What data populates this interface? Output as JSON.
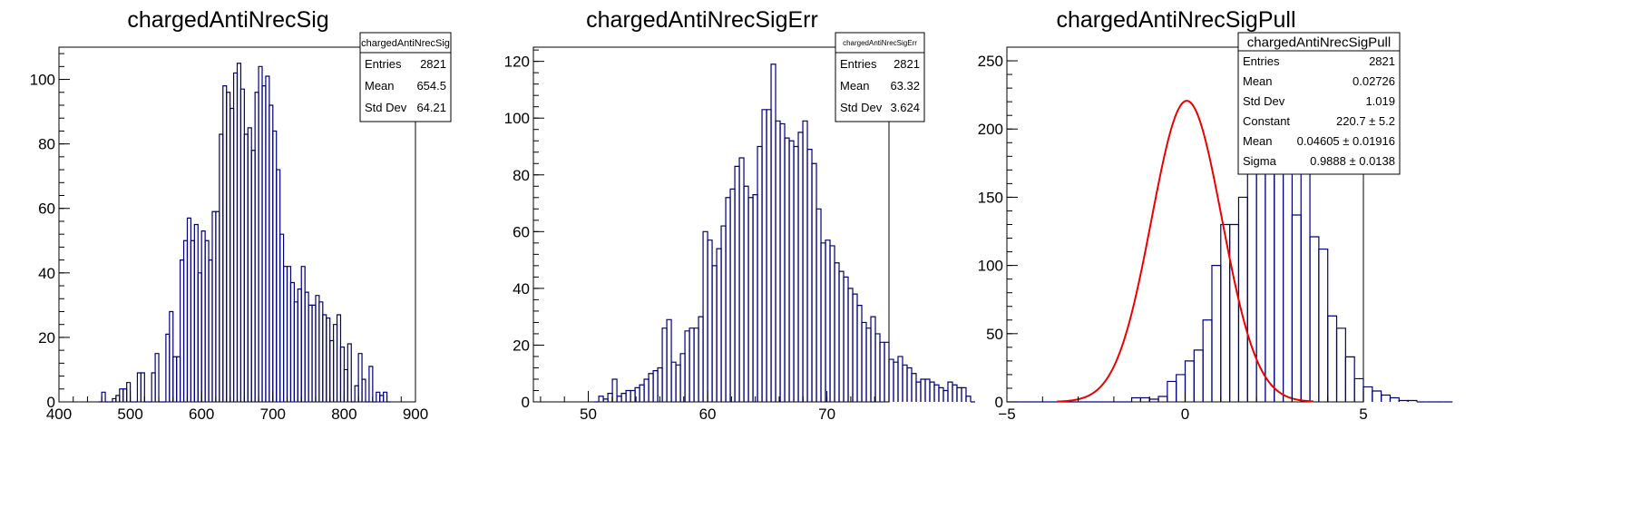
{
  "chart_data": [
    {
      "type": "histogram",
      "title": "chargedAntiNrecSig",
      "xlabel": "",
      "ylabel": "",
      "xlim": [
        400,
        900
      ],
      "ylim": [
        0,
        110
      ],
      "xticks": [
        400,
        500,
        600,
        700,
        800,
        900
      ],
      "yticks": [
        0,
        20,
        40,
        60,
        80,
        100
      ],
      "bins": {
        "start": 455,
        "width": 5
      },
      "values": [
        0,
        3,
        0,
        0,
        1,
        2,
        4,
        4,
        6,
        0,
        0,
        9,
        9,
        0,
        0,
        9,
        15,
        0,
        0,
        21,
        28,
        14,
        14,
        44,
        50,
        57,
        50,
        55,
        40,
        53,
        50,
        44,
        59,
        59,
        83,
        98,
        96,
        91,
        102,
        105,
        97,
        83,
        85,
        78,
        96,
        104,
        98,
        101,
        92,
        84,
        72,
        52,
        42,
        42,
        37,
        31,
        35,
        42,
        34,
        30,
        30,
        33,
        31,
        27,
        26,
        19,
        24,
        27,
        17,
        10,
        18,
        0,
        5,
        15,
        7,
        0,
        11,
        0,
        3,
        2,
        3,
        0
      ],
      "legend_position": "top-right",
      "stats": {
        "header": "chargedAntiNrecSig",
        "rows": [
          {
            "label": "Entries",
            "value": "2821"
          },
          {
            "label": "Mean",
            "value": "654.5"
          },
          {
            "label": "Std Dev",
            "value": "64.21"
          }
        ]
      },
      "line_color": "#00007a"
    },
    {
      "type": "histogram",
      "title": "chargedAntiNrecSigErr",
      "xlabel": "",
      "ylabel": "",
      "xlim": [
        45.4,
        75.2
      ],
      "ylim": [
        0,
        125
      ],
      "xticks": [
        50,
        60,
        70
      ],
      "yticks": [
        0,
        20,
        40,
        60,
        80,
        100,
        120
      ],
      "bins": {
        "start": 50.5,
        "width": 0.38
      },
      "values": [
        0,
        2,
        1,
        3,
        8,
        2,
        3,
        4,
        4,
        5,
        6,
        8,
        10,
        11,
        12,
        26,
        29,
        14,
        13,
        17,
        25,
        26,
        26,
        30,
        60,
        57,
        48,
        54,
        62,
        72,
        75,
        83,
        86,
        76,
        72,
        73,
        90,
        103,
        103,
        119,
        99,
        98,
        93,
        92,
        90,
        95,
        99,
        89,
        84,
        68,
        56,
        57,
        55,
        49,
        46,
        44,
        40,
        38,
        34,
        28,
        26,
        30,
        24,
        21,
        21,
        15,
        14,
        16,
        13,
        12,
        10,
        7,
        8,
        8,
        7,
        6,
        5,
        4,
        7,
        6,
        5,
        5,
        2,
        0
      ],
      "legend_position": "top-right",
      "stats": {
        "header": "chargedAntiNrecSigErr",
        "rows": [
          {
            "label": "Entries",
            "value": "2821"
          },
          {
            "label": "Mean",
            "value": "63.32"
          },
          {
            "label": "Std Dev",
            "value": "3.624"
          }
        ]
      },
      "line_color": "#00007a"
    },
    {
      "type": "histogram",
      "title": "chargedAntiNrecSigPull",
      "xlabel": "",
      "ylabel": "",
      "xlim": [
        -5,
        5
      ],
      "ylim": [
        0,
        260
      ],
      "xticks": [
        -5,
        0,
        5
      ],
      "yticks": [
        0,
        50,
        100,
        150,
        200,
        250
      ],
      "bins": {
        "start": -5,
        "width": 0.25
      },
      "values": [
        0,
        0,
        0,
        0,
        0,
        0,
        0,
        0,
        0,
        0,
        0,
        0,
        0,
        0,
        3,
        3,
        2,
        4,
        15,
        20,
        30,
        38,
        60,
        100,
        130,
        130,
        150,
        200,
        210,
        250,
        210,
        200,
        137,
        170,
        121,
        112,
        63,
        54,
        33,
        17,
        11,
        8,
        5,
        3,
        1,
        1,
        0,
        0,
        0,
        0
      ],
      "fit": {
        "type": "gaus",
        "constant": 220.7,
        "mean": 0.04605,
        "sigma": 0.9888,
        "color": "#ee0000"
      },
      "legend_position": "top-right",
      "stats": {
        "header": "chargedAntiNrecSigPull",
        "rows": [
          {
            "label": "Entries",
            "value": "2821"
          },
          {
            "label": "Mean",
            "value": "0.02726"
          },
          {
            "label": "Std Dev",
            "value": "1.019"
          },
          {
            "label": "Constant",
            "value": "220.7 ± 5.2"
          },
          {
            "label": "Mean",
            "value": "0.04605 ± 0.01916"
          },
          {
            "label": "Sigma",
            "value": "0.9888 ± 0.0138"
          }
        ]
      },
      "line_color": "#00007a"
    }
  ]
}
